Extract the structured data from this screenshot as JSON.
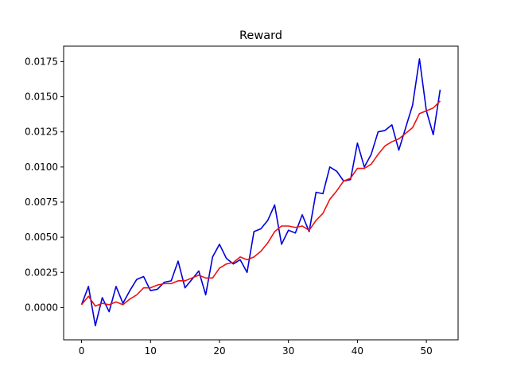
{
  "chart_data": {
    "type": "line",
    "title": "Reward",
    "xlabel": "",
    "ylabel": "",
    "xlim": [
      -2.6,
      54.6
    ],
    "ylim": [
      -0.0023,
      0.0186
    ],
    "grid": false,
    "xticks": [
      0,
      10,
      20,
      30,
      40,
      50
    ],
    "xtick_labels": [
      "0",
      "10",
      "20",
      "30",
      "40",
      "50"
    ],
    "yticks": [
      0.0,
      0.0025,
      0.005,
      0.0075,
      0.01,
      0.0125,
      0.015,
      0.0175
    ],
    "ytick_labels": [
      "0.0000",
      "0.0025",
      "0.0050",
      "0.0075",
      "0.0100",
      "0.0125",
      "0.0150",
      "0.0175"
    ],
    "x": [
      0,
      1,
      2,
      3,
      4,
      5,
      6,
      7,
      8,
      9,
      10,
      11,
      12,
      13,
      14,
      15,
      16,
      17,
      18,
      19,
      20,
      21,
      22,
      23,
      24,
      25,
      26,
      27,
      28,
      29,
      30,
      31,
      32,
      33,
      34,
      35,
      36,
      37,
      38,
      39,
      40,
      41,
      42,
      43,
      44,
      45,
      46,
      47,
      48,
      49,
      50,
      51,
      52
    ],
    "series": [
      {
        "color": "#0000dd",
        "values": [
          0.0002,
          0.0015,
          -0.0013,
          0.0007,
          -0.0003,
          0.0015,
          0.0003,
          0.0012,
          0.002,
          0.0022,
          0.0012,
          0.0013,
          0.0018,
          0.0019,
          0.0033,
          0.0014,
          0.002,
          0.0026,
          0.0009,
          0.0036,
          0.0045,
          0.0035,
          0.0031,
          0.0034,
          0.0025,
          0.0054,
          0.0056,
          0.0062,
          0.0073,
          0.0045,
          0.0055,
          0.0053,
          0.0066,
          0.0054,
          0.0082,
          0.0081,
          0.01,
          0.0097,
          0.009,
          0.0091,
          0.0117,
          0.01,
          0.0109,
          0.0125,
          0.0126,
          0.013,
          0.0112,
          0.0128,
          0.0144,
          0.0177,
          0.014,
          0.0123,
          0.0155
        ]
      },
      {
        "color": "#ee1111",
        "values": [
          0.0002,
          0.0008,
          0.0001,
          0.0003,
          0.0002,
          0.0004,
          0.0002,
          0.0006,
          0.0009,
          0.0014,
          0.0014,
          0.0016,
          0.0017,
          0.0017,
          0.0019,
          0.0019,
          0.0021,
          0.0023,
          0.0021,
          0.0021,
          0.0028,
          0.0031,
          0.0032,
          0.0036,
          0.0034,
          0.0036,
          0.004,
          0.0046,
          0.0054,
          0.0058,
          0.0058,
          0.0057,
          0.0058,
          0.0055,
          0.0062,
          0.0067,
          0.0077,
          0.0083,
          0.009,
          0.0092,
          0.0099,
          0.0099,
          0.0102,
          0.0109,
          0.0115,
          0.0118,
          0.012,
          0.0124,
          0.0128,
          0.0138,
          0.014,
          0.0142,
          0.0147
        ]
      }
    ]
  }
}
